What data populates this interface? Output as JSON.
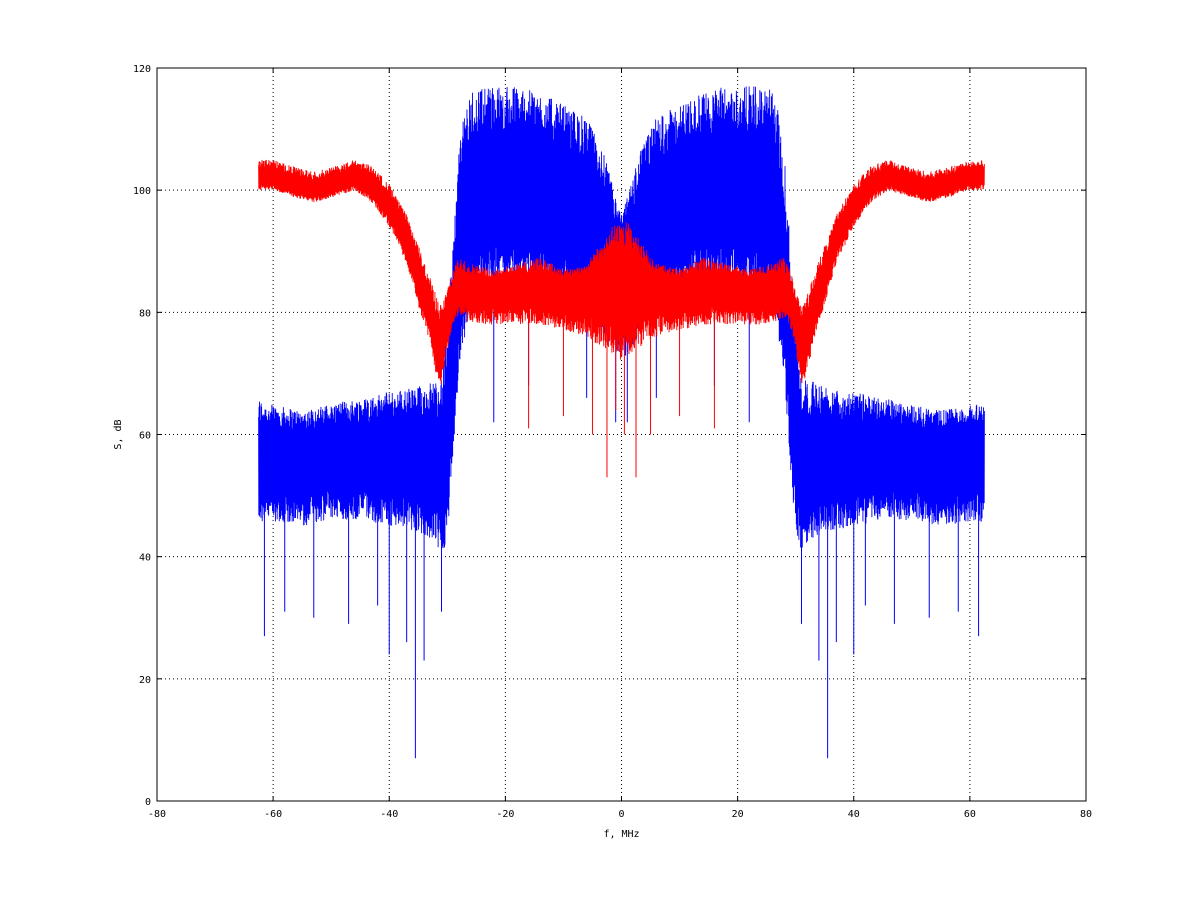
{
  "chart_data": {
    "type": "line",
    "xlabel": "f, MHz",
    "ylabel": "S, dB",
    "xlim": [
      -80,
      80
    ],
    "ylim": [
      0,
      120
    ],
    "xticks": [
      -80,
      -60,
      -40,
      -20,
      0,
      20,
      40,
      60,
      80
    ],
    "yticks": [
      0,
      20,
      40,
      60,
      80,
      100,
      120
    ],
    "grid": true,
    "legend": "none",
    "colors": {
      "blue": "#0000ff",
      "red": "#ff0000",
      "grid": "#000000",
      "frame": "#000000"
    },
    "series": [
      {
        "color": "#0000ff",
        "kind": "noisy-envelope",
        "x": [
          -62.5,
          -61,
          -55,
          -50,
          -45,
          -40,
          -35,
          -32,
          -31,
          -30,
          -29,
          -28,
          -27,
          -26,
          -25,
          -22,
          -18,
          -14,
          -10,
          -6,
          -3,
          -1,
          0,
          1,
          3,
          6,
          10,
          14,
          18,
          22,
          25,
          26,
          27,
          28,
          29,
          30,
          31,
          32,
          35,
          40,
          45,
          50,
          55,
          61,
          62.5
        ],
        "upper": [
          66,
          65,
          64,
          65,
          66,
          67,
          68,
          69,
          69,
          78,
          92,
          107,
          113,
          116,
          117,
          117,
          117,
          116,
          114,
          112,
          106,
          99,
          96,
          99,
          106,
          112,
          114,
          116,
          117,
          117,
          117,
          116,
          113,
          107,
          92,
          78,
          69,
          69,
          68,
          67,
          66,
          65,
          64,
          65,
          66
        ],
        "center": [
          56,
          57,
          56,
          57,
          57,
          56,
          56,
          55,
          55,
          60,
          72,
          86,
          92,
          96,
          98,
          99,
          100,
          100,
          98,
          96,
          91,
          88,
          87,
          88,
          91,
          96,
          98,
          100,
          100,
          99,
          98,
          96,
          92,
          86,
          72,
          60,
          55,
          55,
          56,
          56,
          57,
          57,
          56,
          57,
          56
        ],
        "lower": [
          45,
          46,
          45,
          46,
          46,
          45,
          44,
          42,
          40,
          43,
          56,
          70,
          76,
          80,
          82,
          84,
          85,
          84,
          82,
          80,
          76,
          73,
          72,
          73,
          76,
          80,
          82,
          84,
          85,
          84,
          82,
          80,
          76,
          70,
          56,
          43,
          40,
          42,
          44,
          45,
          46,
          46,
          45,
          46,
          45
        ],
        "spikes": [
          [
            -61.5,
            27
          ],
          [
            -58,
            31
          ],
          [
            -53,
            30
          ],
          [
            -47,
            29
          ],
          [
            -42,
            32
          ],
          [
            -40,
            24
          ],
          [
            -37,
            26
          ],
          [
            -35.5,
            7
          ],
          [
            -34,
            23
          ],
          [
            -31,
            31
          ],
          [
            -22,
            62
          ],
          [
            -16,
            68
          ],
          [
            -6,
            66
          ],
          [
            -1,
            62
          ],
          [
            1,
            62
          ],
          [
            6,
            66
          ],
          [
            16,
            68
          ],
          [
            22,
            62
          ],
          [
            31,
            29
          ],
          [
            34,
            23
          ],
          [
            35.5,
            7
          ],
          [
            37,
            26
          ],
          [
            40,
            24
          ],
          [
            42,
            32
          ],
          [
            47,
            29
          ],
          [
            53,
            30
          ],
          [
            58,
            31
          ],
          [
            61.5,
            27
          ]
        ]
      },
      {
        "color": "#ff0000",
        "kind": "noisy-envelope",
        "x": [
          -62.5,
          -60,
          -57,
          -53,
          -49,
          -46,
          -43,
          -40,
          -37,
          -35,
          -33,
          -32,
          -31,
          -30,
          -29,
          -28,
          -26,
          -22,
          -18,
          -14,
          -10,
          -6,
          -3,
          -1,
          0,
          1,
          3,
          6,
          10,
          14,
          18,
          22,
          26,
          28,
          29,
          30,
          31,
          32,
          33,
          35,
          37,
          40,
          43,
          46,
          49,
          53,
          57,
          60,
          62.5
        ],
        "upper": [
          105,
          105,
          104,
          103,
          104,
          105,
          104,
          101,
          96,
          91,
          86,
          83,
          81,
          84,
          87,
          89,
          88,
          87,
          88,
          89,
          87,
          88,
          92,
          95,
          94,
          95,
          92,
          88,
          87,
          89,
          88,
          87,
          88,
          89,
          87,
          84,
          81,
          83,
          86,
          91,
          96,
          101,
          104,
          105,
          104,
          103,
          104,
          105,
          105
        ],
        "center": [
          102,
          102,
          101,
          100,
          101,
          102,
          101,
          97,
          92,
          86,
          80,
          76,
          75,
          79,
          82,
          84,
          84,
          84,
          84,
          84,
          84,
          84,
          85,
          85,
          84,
          85,
          85,
          84,
          84,
          84,
          84,
          84,
          84,
          84,
          82,
          79,
          75,
          76,
          80,
          86,
          92,
          97,
          101,
          102,
          101,
          100,
          101,
          102,
          102
        ],
        "lower": [
          100,
          100,
          99,
          98,
          99,
          100,
          98,
          94,
          88,
          81,
          75,
          70,
          68,
          74,
          78,
          79,
          78,
          78,
          78,
          78,
          77,
          76,
          74,
          73,
          72,
          73,
          74,
          76,
          77,
          78,
          78,
          78,
          78,
          79,
          78,
          74,
          68,
          70,
          75,
          81,
          88,
          94,
          98,
          100,
          99,
          98,
          99,
          100,
          100
        ],
        "spikes": [
          [
            -16,
            61
          ],
          [
            -10,
            63
          ],
          [
            -5,
            60
          ],
          [
            -2.5,
            53
          ],
          [
            -1,
            64
          ],
          [
            0.5,
            60
          ],
          [
            2.5,
            53
          ],
          [
            5,
            60
          ],
          [
            10,
            63
          ],
          [
            16,
            61
          ]
        ]
      }
    ]
  }
}
